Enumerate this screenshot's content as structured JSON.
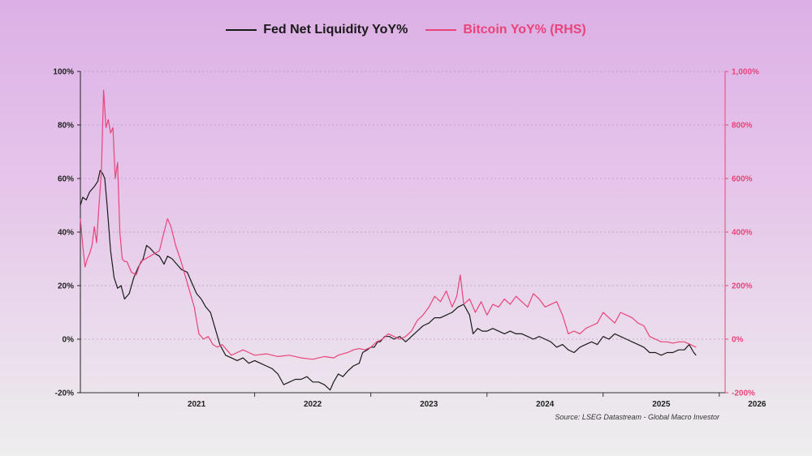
{
  "legend": {
    "series1": "Fed Net Liquidity YoY%",
    "series2": "Bitcoin YoY% (RHS)"
  },
  "source": "Source: LSEG Datastream - Global Macro Investor",
  "colors": {
    "series1": "#1a1a1a",
    "series2": "#e8447a",
    "left_axis": "#222222",
    "right_axis": "#e8447a"
  },
  "chart_data": {
    "type": "line",
    "title": "",
    "grid": true,
    "legend_position": "top-center",
    "x_ticks": [
      "2021",
      "2022",
      "2023",
      "2024",
      "2025",
      "2026"
    ],
    "xlim": [
      2020.5,
      2026.05
    ],
    "y_left": {
      "lim": [
        -20,
        100
      ],
      "ticks": [
        "100%",
        "80%",
        "60%",
        "40%",
        "20%",
        "0%",
        "-20%"
      ],
      "values": [
        100,
        80,
        60,
        40,
        20,
        0,
        -20
      ]
    },
    "y_right": {
      "lim": [
        -200,
        1000
      ],
      "ticks": [
        "1,000%",
        "800%",
        "600%",
        "400%",
        "200%",
        "0%",
        "-200%"
      ],
      "values": [
        1000,
        800,
        600,
        400,
        200,
        0,
        -200
      ]
    },
    "series": [
      {
        "name": "Fed Net Liquidity YoY%",
        "axis": "left",
        "points": [
          [
            2020.5,
            50
          ],
          [
            2020.52,
            53
          ],
          [
            2020.55,
            52
          ],
          [
            2020.58,
            55
          ],
          [
            2020.62,
            57
          ],
          [
            2020.65,
            59
          ],
          [
            2020.67,
            63
          ],
          [
            2020.69,
            62
          ],
          [
            2020.71,
            60
          ],
          [
            2020.73,
            50
          ],
          [
            2020.76,
            33
          ],
          [
            2020.79,
            23
          ],
          [
            2020.82,
            19
          ],
          [
            2020.85,
            20
          ],
          [
            2020.88,
            15
          ],
          [
            2020.92,
            17
          ],
          [
            2020.96,
            23
          ],
          [
            2021.0,
            27
          ],
          [
            2021.04,
            30
          ],
          [
            2021.07,
            35
          ],
          [
            2021.1,
            34
          ],
          [
            2021.14,
            32
          ],
          [
            2021.18,
            31
          ],
          [
            2021.22,
            28
          ],
          [
            2021.25,
            31
          ],
          [
            2021.29,
            30
          ],
          [
            2021.33,
            28
          ],
          [
            2021.37,
            26
          ],
          [
            2021.42,
            25
          ],
          [
            2021.46,
            21
          ],
          [
            2021.5,
            17
          ],
          [
            2021.54,
            15
          ],
          [
            2021.58,
            12
          ],
          [
            2021.62,
            10
          ],
          [
            2021.66,
            4
          ],
          [
            2021.7,
            -2
          ],
          [
            2021.75,
            -6
          ],
          [
            2021.8,
            -7
          ],
          [
            2021.85,
            -8
          ],
          [
            2021.9,
            -7
          ],
          [
            2021.95,
            -9
          ],
          [
            2022.0,
            -8
          ],
          [
            2022.05,
            -9
          ],
          [
            2022.1,
            -10
          ],
          [
            2022.15,
            -11
          ],
          [
            2022.2,
            -13
          ],
          [
            2022.25,
            -17
          ],
          [
            2022.3,
            -16
          ],
          [
            2022.35,
            -15
          ],
          [
            2022.4,
            -15
          ],
          [
            2022.45,
            -14
          ],
          [
            2022.5,
            -16
          ],
          [
            2022.55,
            -16
          ],
          [
            2022.6,
            -17
          ],
          [
            2022.65,
            -19
          ],
          [
            2022.68,
            -16
          ],
          [
            2022.72,
            -13
          ],
          [
            2022.76,
            -14
          ],
          [
            2022.8,
            -12
          ],
          [
            2022.85,
            -10
          ],
          [
            2022.9,
            -9
          ],
          [
            2022.93,
            -5
          ],
          [
            2022.97,
            -4
          ],
          [
            2023.0,
            -3
          ],
          [
            2023.03,
            -3
          ],
          [
            2023.06,
            -1
          ],
          [
            2023.08,
            -1
          ],
          [
            2023.12,
            1
          ],
          [
            2023.16,
            1
          ],
          [
            2023.2,
            0
          ],
          [
            2023.25,
            1
          ],
          [
            2023.3,
            -1
          ],
          [
            2023.35,
            1
          ],
          [
            2023.4,
            3
          ],
          [
            2023.45,
            5
          ],
          [
            2023.5,
            6
          ],
          [
            2023.55,
            8
          ],
          [
            2023.6,
            8
          ],
          [
            2023.65,
            9
          ],
          [
            2023.7,
            10
          ],
          [
            2023.75,
            12
          ],
          [
            2023.8,
            13
          ],
          [
            2023.85,
            9
          ],
          [
            2023.88,
            2
          ],
          [
            2023.92,
            4
          ],
          [
            2023.96,
            3
          ],
          [
            2024.0,
            3
          ],
          [
            2024.05,
            4
          ],
          [
            2024.1,
            3
          ],
          [
            2024.15,
            2
          ],
          [
            2024.2,
            3
          ],
          [
            2024.25,
            2
          ],
          [
            2024.3,
            2
          ],
          [
            2024.35,
            1
          ],
          [
            2024.4,
            0
          ],
          [
            2024.45,
            1
          ],
          [
            2024.5,
            0
          ],
          [
            2024.55,
            -1
          ],
          [
            2024.6,
            -3
          ],
          [
            2024.65,
            -2
          ],
          [
            2024.7,
            -4
          ],
          [
            2024.75,
            -5
          ],
          [
            2024.8,
            -3
          ],
          [
            2024.85,
            -2
          ],
          [
            2024.9,
            -1
          ],
          [
            2024.95,
            -2
          ],
          [
            2025.0,
            1
          ],
          [
            2025.05,
            0
          ],
          [
            2025.1,
            2
          ],
          [
            2025.15,
            1
          ],
          [
            2025.2,
            0
          ],
          [
            2025.25,
            -1
          ],
          [
            2025.3,
            -2
          ],
          [
            2025.35,
            -3
          ],
          [
            2025.4,
            -5
          ],
          [
            2025.45,
            -5
          ],
          [
            2025.5,
            -6
          ],
          [
            2025.55,
            -5
          ],
          [
            2025.6,
            -5
          ],
          [
            2025.65,
            -4
          ],
          [
            2025.7,
            -4
          ],
          [
            2025.74,
            -2
          ],
          [
            2025.78,
            -5
          ],
          [
            2025.8,
            -6
          ]
        ]
      },
      {
        "name": "Bitcoin YoY% (RHS)",
        "axis": "right",
        "points": [
          [
            2020.5,
            450
          ],
          [
            2020.52,
            350
          ],
          [
            2020.54,
            270
          ],
          [
            2020.56,
            300
          ],
          [
            2020.58,
            320
          ],
          [
            2020.6,
            350
          ],
          [
            2020.62,
            420
          ],
          [
            2020.64,
            360
          ],
          [
            2020.66,
            500
          ],
          [
            2020.68,
            620
          ],
          [
            2020.7,
            930
          ],
          [
            2020.72,
            790
          ],
          [
            2020.74,
            820
          ],
          [
            2020.76,
            770
          ],
          [
            2020.78,
            790
          ],
          [
            2020.8,
            600
          ],
          [
            2020.82,
            660
          ],
          [
            2020.84,
            400
          ],
          [
            2020.86,
            300
          ],
          [
            2020.88,
            290
          ],
          [
            2020.9,
            290
          ],
          [
            2020.94,
            250
          ],
          [
            2020.98,
            240
          ],
          [
            2021.02,
            290
          ],
          [
            2021.06,
            300
          ],
          [
            2021.1,
            310
          ],
          [
            2021.14,
            320
          ],
          [
            2021.18,
            330
          ],
          [
            2021.22,
            400
          ],
          [
            2021.25,
            450
          ],
          [
            2021.28,
            420
          ],
          [
            2021.32,
            350
          ],
          [
            2021.36,
            300
          ],
          [
            2021.4,
            240
          ],
          [
            2021.44,
            180
          ],
          [
            2021.48,
            120
          ],
          [
            2021.52,
            20
          ],
          [
            2021.56,
            0
          ],
          [
            2021.6,
            10
          ],
          [
            2021.64,
            -20
          ],
          [
            2021.68,
            -30
          ],
          [
            2021.72,
            -20
          ],
          [
            2021.76,
            -40
          ],
          [
            2021.8,
            -60
          ],
          [
            2021.85,
            -50
          ],
          [
            2021.9,
            -40
          ],
          [
            2021.95,
            -50
          ],
          [
            2022.0,
            -60
          ],
          [
            2022.1,
            -55
          ],
          [
            2022.2,
            -65
          ],
          [
            2022.3,
            -60
          ],
          [
            2022.4,
            -70
          ],
          [
            2022.5,
            -75
          ],
          [
            2022.6,
            -65
          ],
          [
            2022.68,
            -70
          ],
          [
            2022.72,
            -60
          ],
          [
            2022.76,
            -55
          ],
          [
            2022.8,
            -50
          ],
          [
            2022.85,
            -40
          ],
          [
            2022.9,
            -35
          ],
          [
            2022.95,
            -40
          ],
          [
            2023.0,
            -30
          ],
          [
            2023.05,
            -10
          ],
          [
            2023.1,
            0
          ],
          [
            2023.15,
            20
          ],
          [
            2023.2,
            10
          ],
          [
            2023.25,
            0
          ],
          [
            2023.3,
            10
          ],
          [
            2023.35,
            30
          ],
          [
            2023.4,
            70
          ],
          [
            2023.45,
            90
          ],
          [
            2023.5,
            120
          ],
          [
            2023.55,
            160
          ],
          [
            2023.6,
            140
          ],
          [
            2023.65,
            180
          ],
          [
            2023.7,
            120
          ],
          [
            2023.74,
            160
          ],
          [
            2023.77,
            240
          ],
          [
            2023.8,
            130
          ],
          [
            2023.85,
            150
          ],
          [
            2023.9,
            100
          ],
          [
            2023.95,
            140
          ],
          [
            2024.0,
            90
          ],
          [
            2024.05,
            130
          ],
          [
            2024.1,
            120
          ],
          [
            2024.15,
            150
          ],
          [
            2024.2,
            130
          ],
          [
            2024.25,
            160
          ],
          [
            2024.3,
            140
          ],
          [
            2024.35,
            120
          ],
          [
            2024.4,
            170
          ],
          [
            2024.45,
            150
          ],
          [
            2024.5,
            120
          ],
          [
            2024.55,
            130
          ],
          [
            2024.6,
            140
          ],
          [
            2024.65,
            90
          ],
          [
            2024.7,
            20
          ],
          [
            2024.75,
            30
          ],
          [
            2024.8,
            20
          ],
          [
            2024.85,
            40
          ],
          [
            2024.9,
            50
          ],
          [
            2024.95,
            60
          ],
          [
            2025.0,
            100
          ],
          [
            2025.05,
            80
          ],
          [
            2025.1,
            60
          ],
          [
            2025.15,
            100
          ],
          [
            2025.2,
            90
          ],
          [
            2025.25,
            80
          ],
          [
            2025.3,
            60
          ],
          [
            2025.35,
            50
          ],
          [
            2025.4,
            10
          ],
          [
            2025.45,
            0
          ],
          [
            2025.5,
            -10
          ],
          [
            2025.55,
            -10
          ],
          [
            2025.6,
            -15
          ],
          [
            2025.65,
            -10
          ],
          [
            2025.7,
            -10
          ],
          [
            2025.75,
            -20
          ],
          [
            2025.8,
            -30
          ]
        ]
      }
    ]
  }
}
